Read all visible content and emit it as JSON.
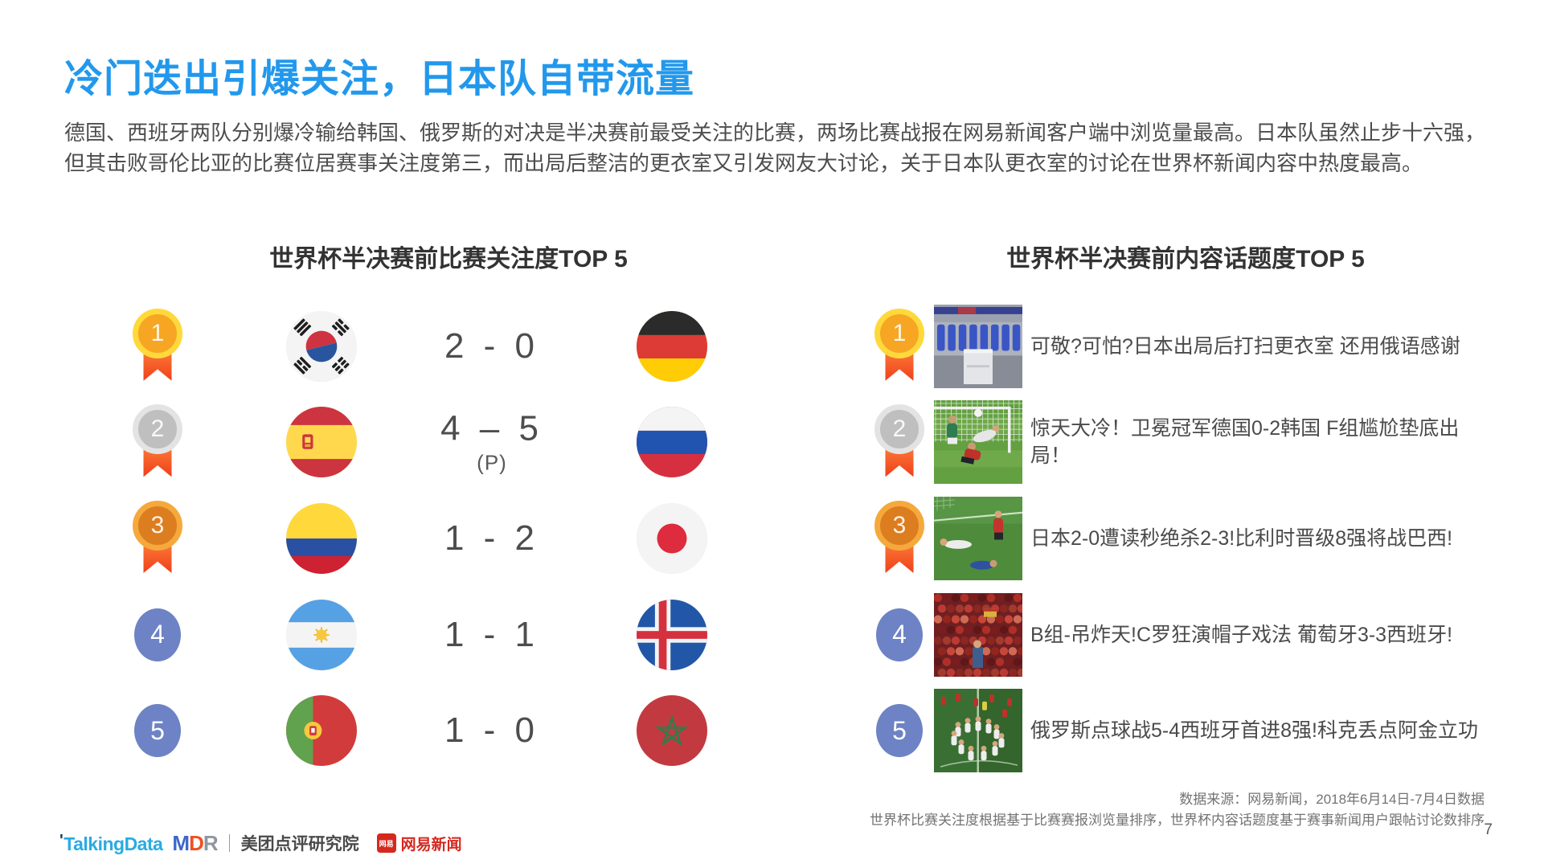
{
  "page": {
    "title": "冷门迭出引爆关注，日本队自带流量",
    "paragraph": "德国、西班牙两队分别爆冷输给韩国、俄罗斯的对决是半决赛前最受关注的比赛，两场比赛战报在网易新闻客户端中浏览量最高。日本队虽然止步十六强，但其击败哥伦比亚的比赛位居赛事关注度第三，而出局后整洁的更衣室又引发网友大讨论，关于日本队更衣室的讨论在世界杯新闻内容中热度最高。",
    "page_number": "7"
  },
  "colors": {
    "title_blue": "#2298EC",
    "rank_circle_blue": "#6D83C5",
    "gold_medal": "#F6A623",
    "silver_medal": "#BFBFBF",
    "bronze_medal": "#DC7D20",
    "ribbon_orange": "#EF3F1C",
    "body_text": "#4D4D4D"
  },
  "left_panel": {
    "title": "世界杯半决赛前比赛关注度TOP 5",
    "rows": [
      {
        "rank": "1",
        "rank_type": "gold",
        "home_flag": "south-korea",
        "score": "2 - 0",
        "score_note": "",
        "away_flag": "germany"
      },
      {
        "rank": "2",
        "rank_type": "silver",
        "home_flag": "spain",
        "score": "4 – 5",
        "score_note": "(P)",
        "away_flag": "russia"
      },
      {
        "rank": "3",
        "rank_type": "bronze",
        "home_flag": "colombia",
        "score": "1 - 2",
        "score_note": "",
        "away_flag": "japan"
      },
      {
        "rank": "4",
        "rank_type": "plain",
        "home_flag": "argentina",
        "score": "1 - 1",
        "score_note": "",
        "away_flag": "iceland"
      },
      {
        "rank": "5",
        "rank_type": "plain",
        "home_flag": "portugal",
        "score": "1 - 0",
        "score_note": "",
        "away_flag": "morocco"
      }
    ]
  },
  "right_panel": {
    "title": "世界杯半决赛前内容话题度TOP 5",
    "rows": [
      {
        "rank": "1",
        "rank_type": "gold",
        "thumb": "locker-room",
        "headline": "可敬?可怕?日本出局后打扫更衣室 还用俄语感谢"
      },
      {
        "rank": "2",
        "rank_type": "silver",
        "thumb": "goal-net-upset",
        "headline": "惊天大冷！卫冕冠军德国0-2韩国 F组尴尬垫底出局！"
      },
      {
        "rank": "3",
        "rank_type": "bronze",
        "thumb": "pitch-last-second",
        "headline": "日本2-0遭读秒绝杀2-3!比利时晋级8强将战巴西!"
      },
      {
        "rank": "4",
        "rank_type": "plain",
        "thumb": "red-crowd",
        "headline": "B组-吊炸天!C罗狂演帽子戏法 葡萄牙3-3西班牙!"
      },
      {
        "rank": "5",
        "rank_type": "plain",
        "thumb": "penalty-celebration",
        "headline": "俄罗斯点球战5-4西班牙首进8强!科克丢点阿金立功"
      }
    ]
  },
  "footer": {
    "source_line1": "数据来源：网易新闻，2018年6月14日-7月4日数据",
    "source_line2": "世界杯比赛关注度根据基于比赛赛报浏览量排序，世界杯内容话题度基于赛事新闻用户跟帖讨论数排序",
    "logos": {
      "talkingdata": "TalkingData",
      "mdr_letters": [
        "M",
        "D",
        "R"
      ],
      "meituan": "美团点评研究院",
      "netease_icon": "网易",
      "netease": "网易新闻"
    }
  }
}
